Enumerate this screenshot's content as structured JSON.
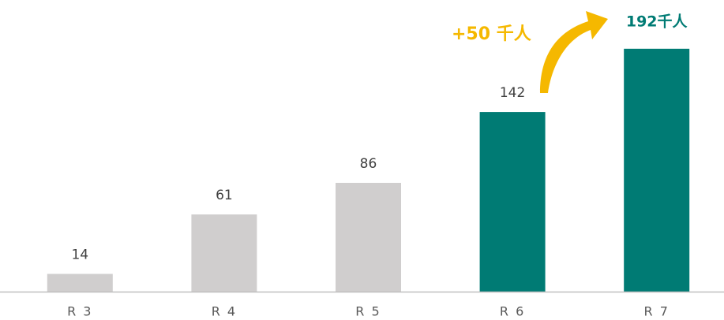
{
  "chart_data": {
    "type": "bar",
    "categories": [
      "R 3",
      "R 4",
      "R 5",
      "R 6",
      "R 7"
    ],
    "values": [
      14,
      61,
      86,
      142,
      192
    ],
    "value_labels": [
      "14",
      "61",
      "86",
      "142",
      "192千人"
    ],
    "colors": [
      "#d0cece",
      "#d0cece",
      "#d0cece",
      "#007b74",
      "#007b74"
    ],
    "annotation": "+50 千人",
    "ylim": [
      0,
      200
    ]
  }
}
